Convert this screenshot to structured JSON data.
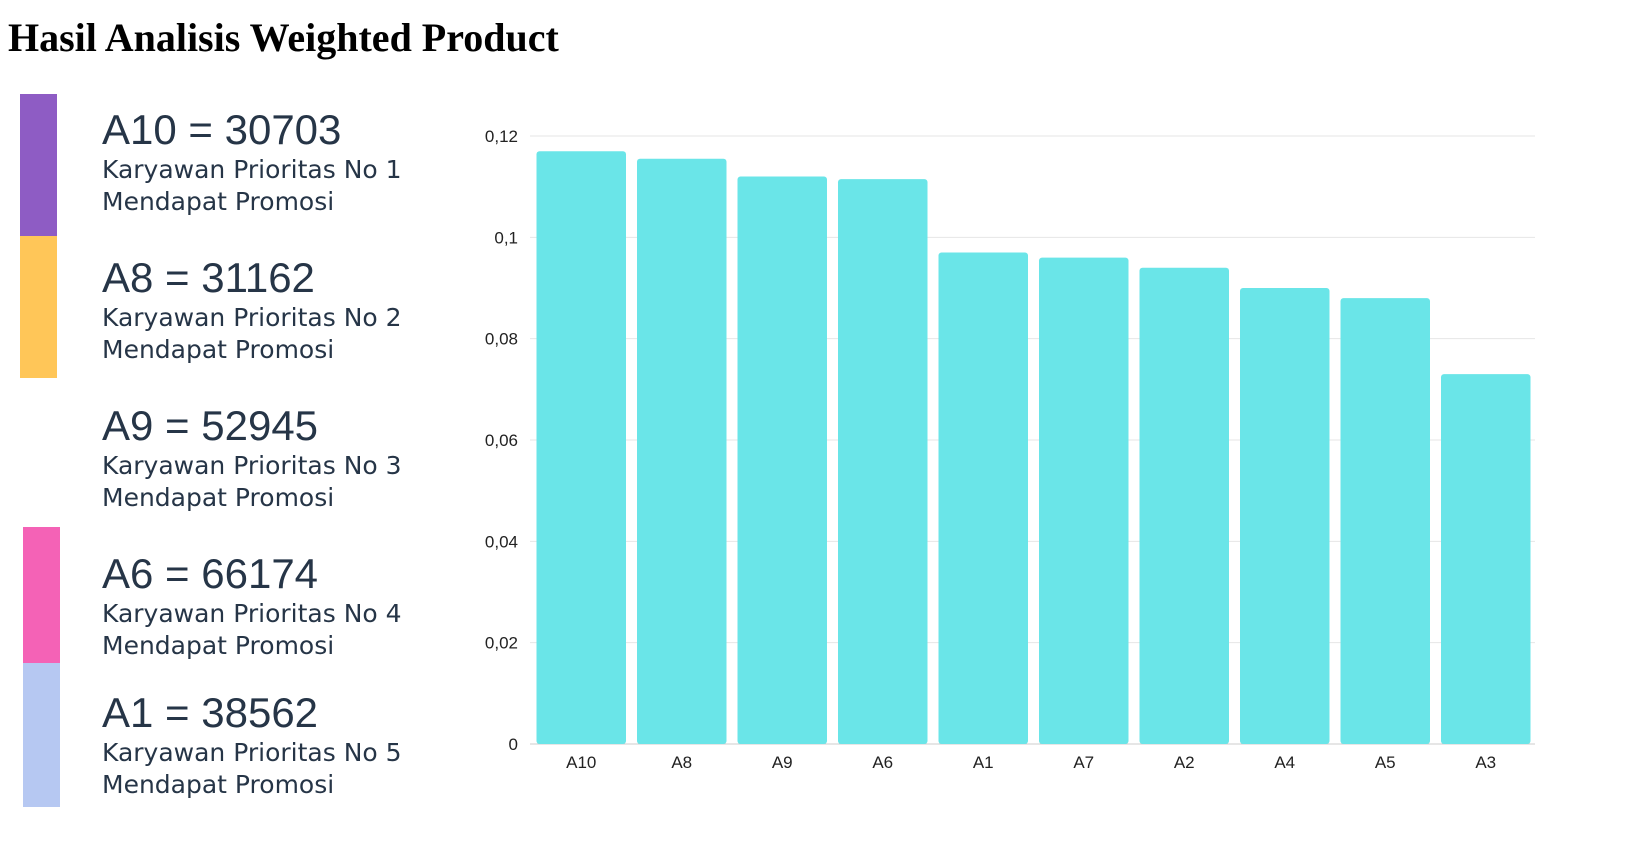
{
  "page": {
    "title": "Hasil Analisis Weighted Product"
  },
  "ranking": [
    {
      "value_text": "A10 = 30703",
      "line1": "Karyawan Prioritas No 1",
      "line2": "Mendapat Promosi",
      "color": "#8e5cc4"
    },
    {
      "value_text": "A8 = 31162",
      "line1": "Karyawan Prioritas No 2",
      "line2": "Mendapat Promosi",
      "color": "#ffc658"
    },
    {
      "value_text": "A9 = 52945",
      "line1": "Karyawan Prioritas No 3",
      "line2": "Mendapat Promosi",
      "color": "#ffffff"
    },
    {
      "value_text": "A6 = 66174",
      "line1": "Karyawan Prioritas No 4",
      "line2": "Mendapat Promosi",
      "color": "#f462b6"
    },
    {
      "value_text": "A1 = 38562",
      "line1": "Karyawan Prioritas No 5",
      "line2": "Mendapat Promosi",
      "color": "#b6c8f2"
    }
  ],
  "chart_data": {
    "type": "bar",
    "categories": [
      "A10",
      "A8",
      "A9",
      "A6",
      "A1",
      "A7",
      "A2",
      "A4",
      "A5",
      "A3"
    ],
    "values": [
      0.117,
      0.1155,
      0.112,
      0.1115,
      0.097,
      0.096,
      0.094,
      0.09,
      0.088,
      0.073
    ],
    "ylim": [
      0,
      0.12
    ],
    "yticks": [
      0,
      0.02,
      0.04,
      0.06,
      0.08,
      0.1,
      0.12
    ],
    "ytick_labels": [
      "0",
      "0,02",
      "0,04",
      "0,06",
      "0,08",
      "0,1",
      "0,12"
    ],
    "bar_color": "#6ae5e8",
    "grid": true,
    "title": "",
    "xlabel": "",
    "ylabel": ""
  }
}
